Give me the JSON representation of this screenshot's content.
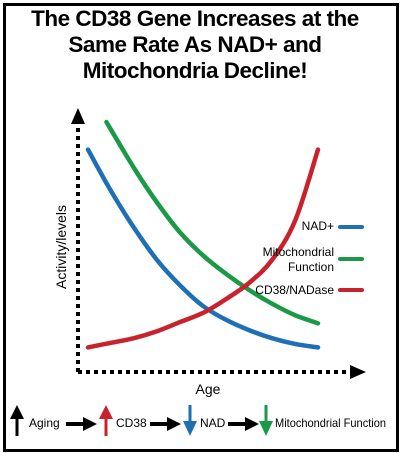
{
  "title_lines": [
    "The CD38 Gene Increases at the",
    "Same Rate As NAD+ and",
    "Mitochondria Decline!"
  ],
  "chart_data": {
    "type": "line",
    "title": "The CD38 Gene Increases at the Same Rate As NAD+ and Mitochondria Decline!",
    "xlabel": "Age",
    "ylabel": "Activity/levels",
    "xlim": [
      0,
      100
    ],
    "ylim": [
      0,
      100
    ],
    "grid": false,
    "legend_position": "right",
    "series": [
      {
        "name": "NAD+",
        "color": "#1f6fb4",
        "x": [
          0,
          10,
          20,
          30,
          40,
          50,
          60,
          70,
          80,
          90,
          100
        ],
        "y": [
          88,
          70,
          54,
          40,
          29,
          20,
          14,
          9.5,
          6,
          3.5,
          2
        ]
      },
      {
        "name": "Mitochondrial Function",
        "color": "#1a9a46",
        "x": [
          8,
          20,
          30,
          40,
          50,
          60,
          70,
          80,
          90,
          100
        ],
        "y": [
          100,
          80,
          65,
          52,
          42,
          34,
          27,
          21,
          16,
          12.5
        ]
      },
      {
        "name": "CD38/NADase",
        "color": "#c8232c",
        "x": [
          0,
          10,
          20,
          30,
          40,
          50,
          60,
          70,
          80,
          90,
          100
        ],
        "y": [
          2,
          4,
          6,
          9,
          13,
          17,
          23,
          30,
          40,
          57,
          88
        ]
      }
    ],
    "legend": [
      "NAD+",
      "Mitochondrial Function",
      "CD38/NADase"
    ]
  },
  "legend_labels": {
    "nad": "NAD+",
    "mito_line1": "Mitochondrial",
    "mito_line2": "Function",
    "cd38": "CD38/NADase"
  },
  "flow": {
    "aging": "Aging",
    "cd38": "CD38",
    "nad": "NAD",
    "mito": "Mitochondrial Function"
  },
  "colors": {
    "black": "#000000",
    "red": "#c8232c",
    "blue": "#1f6fb4",
    "green": "#1a9a46"
  }
}
